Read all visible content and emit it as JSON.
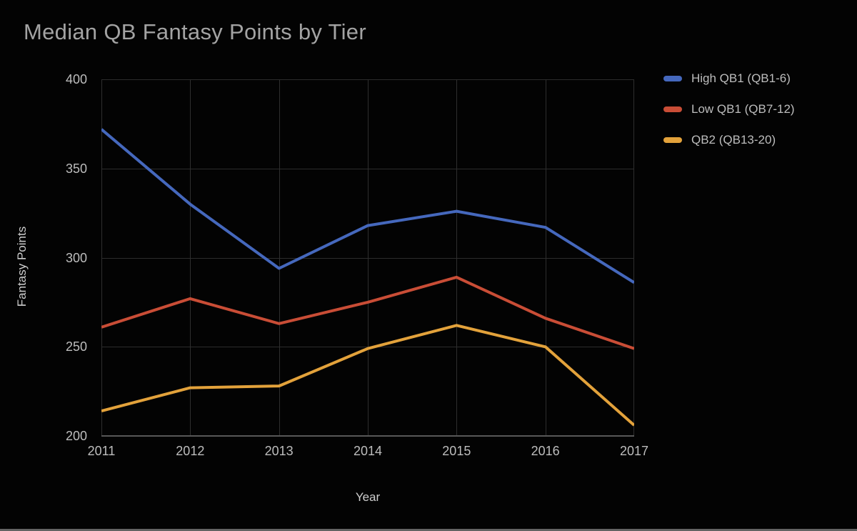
{
  "chart_data": {
    "type": "line",
    "title": "Median QB Fantasy Points by Tier",
    "xlabel": "Year",
    "ylabel": "Fantasy Points",
    "categories": [
      "2011",
      "2012",
      "2013",
      "2014",
      "2015",
      "2016",
      "2017"
    ],
    "yticks": [
      200,
      250,
      300,
      350,
      400
    ],
    "ylim": [
      200,
      400
    ],
    "grid": true,
    "legend_position": "top-right",
    "background_color": "#030303",
    "series": [
      {
        "name": "High QB1 (QB1-6)",
        "color": "#4568bd",
        "values": [
          372,
          330,
          294,
          318,
          326,
          317,
          286
        ]
      },
      {
        "name": "Low QB1 (QB7-12)",
        "color": "#c94d36",
        "values": [
          261,
          277,
          263,
          275,
          289,
          266,
          249
        ]
      },
      {
        "name": "QB2 (QB13-20)",
        "color": "#e3a23b",
        "values": [
          214,
          227,
          228,
          249,
          262,
          250,
          206
        ]
      }
    ]
  }
}
